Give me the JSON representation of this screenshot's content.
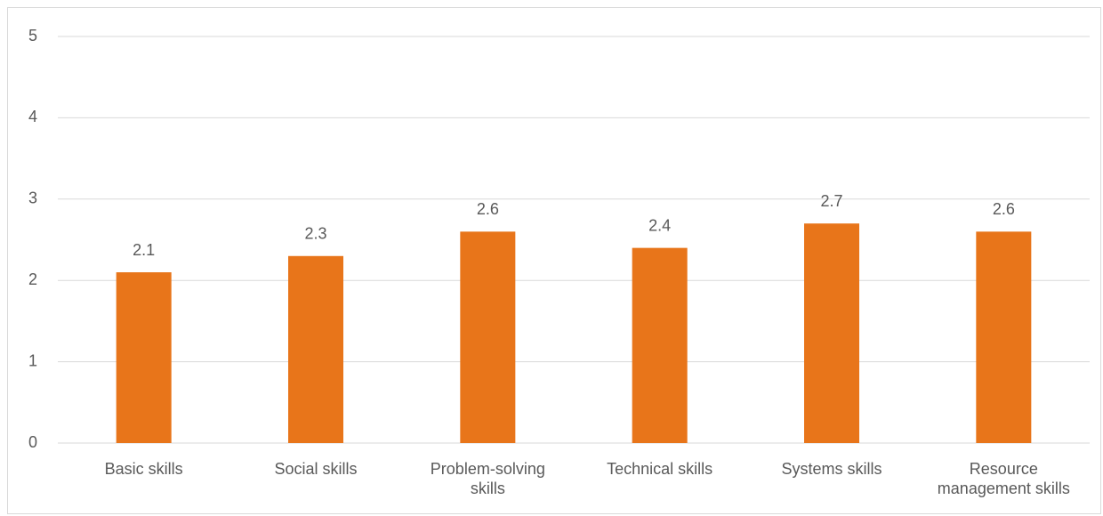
{
  "chart_data": {
    "type": "bar",
    "categories": [
      "Basic skills",
      "Social skills",
      "Problem-solving skills",
      "Technical skills",
      "Systems skills",
      "Resource management skills"
    ],
    "values": [
      2.1,
      2.3,
      2.6,
      2.4,
      2.7,
      2.6
    ],
    "color": "#e8751a",
    "ylim": [
      0,
      5
    ],
    "yticks": [
      0,
      1,
      2,
      3,
      4,
      5
    ],
    "grid": true
  }
}
